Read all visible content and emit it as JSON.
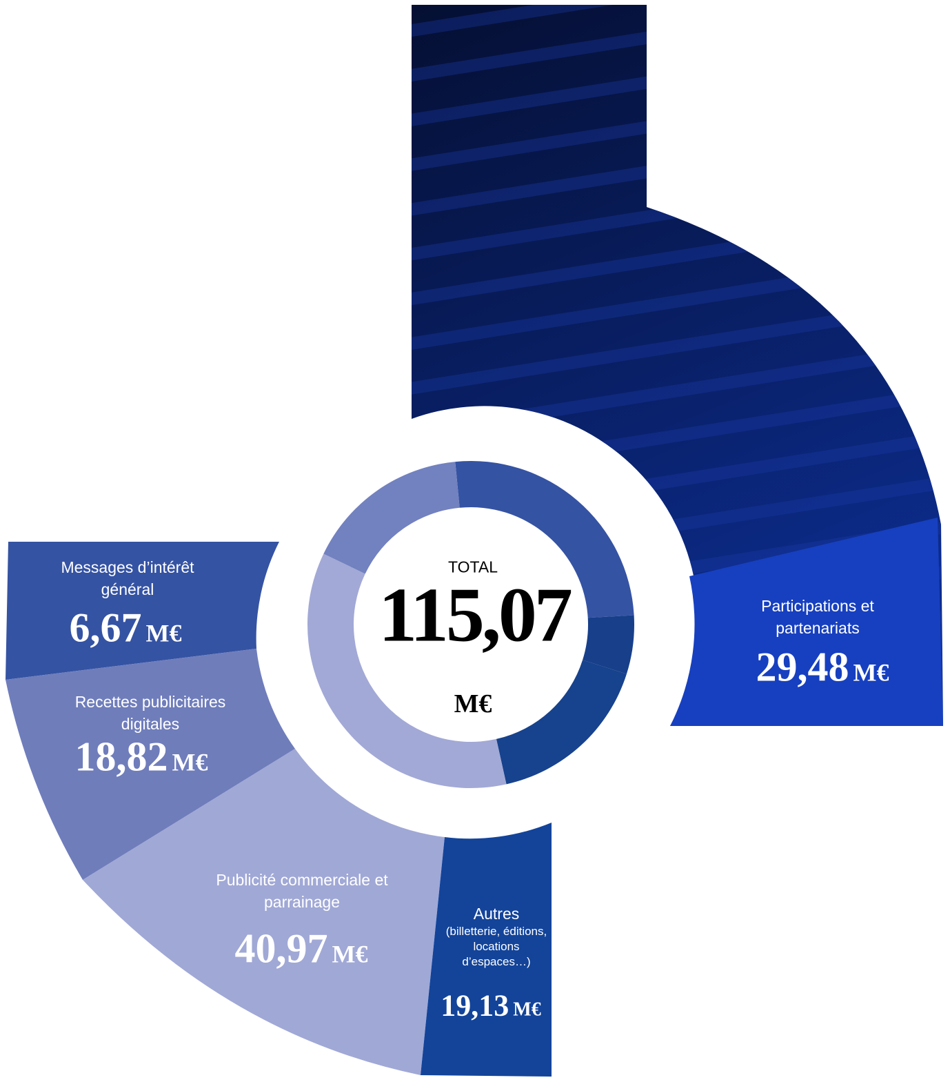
{
  "chart_data": {
    "type": "pie",
    "total_label": "TOTAL",
    "total_value": "115,07",
    "unit": "M€",
    "categories": [
      "Participations et partenariats",
      "Messages d’intérêt général",
      "Autres",
      "Publicité commerciale et parrainage",
      "Recettes publicitaires digitales"
    ],
    "category_note": "(billetterie, éditions, locations d’espaces…)",
    "values": [
      29.48,
      6.67,
      19.13,
      40.97,
      18.82
    ],
    "value_labels": [
      "29,48",
      "6,67",
      "19,13",
      "40,97",
      "18,82"
    ],
    "colors": [
      "#3553a3",
      "#173f8a",
      "#17428d",
      "#a2a9d6",
      "#7281bf"
    ]
  }
}
